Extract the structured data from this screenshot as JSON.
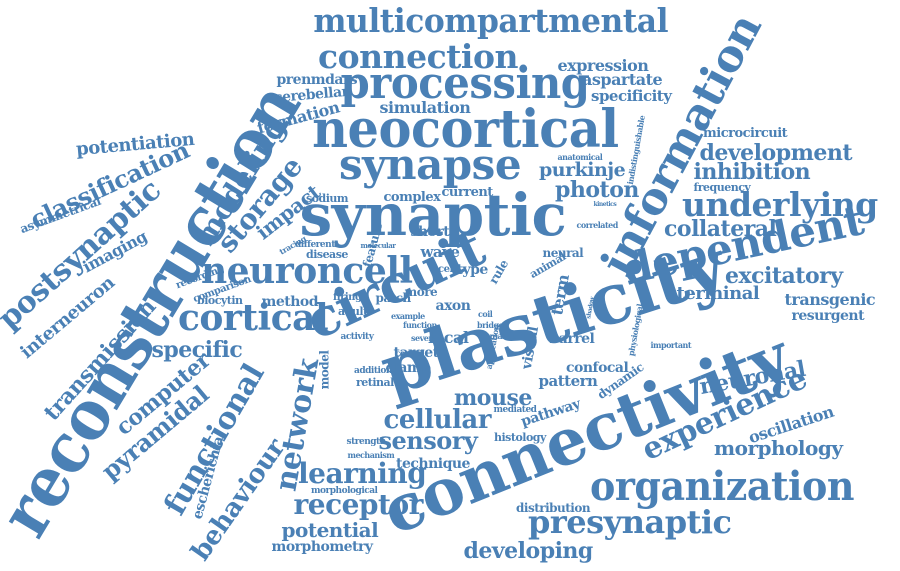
{
  "color": "#4a80b5",
  "words": [
    "multicompartmental",
    "connection",
    "processing",
    "neocortical",
    "synapse",
    "synaptic",
    "reconstruction",
    "information",
    "dependent",
    "underlying",
    "development",
    "inhibition",
    "microcircuit",
    "photon",
    "purkinje",
    "complex",
    "current",
    "sodium",
    "impact",
    "storage",
    "modeling",
    "classification",
    "potentiation",
    "postsynaptic",
    "asymmetrical",
    "imaging",
    "neuroncell",
    "cortical",
    "interneuron",
    "transmission",
    "specific",
    "computer",
    "pyramidal",
    "functional",
    "behaviour",
    "network",
    "circuit",
    "plasticity",
    "connectivity",
    "experience",
    "organization",
    "presynaptic",
    "developing",
    "potential",
    "morphometry",
    "receptor",
    "learning",
    "sensory",
    "cellular",
    "mouse",
    "technique",
    "oscillation",
    "morphology",
    "neuronal",
    "excitatory",
    "collateral",
    "terminal",
    "transgenic",
    "resurgent",
    "expression",
    "aspartate",
    "specificity",
    "simulation",
    "prenmdars",
    "cerebellar",
    "formation",
    "escherichia",
    "frequency",
    "wave",
    "short",
    "feature",
    "disease",
    "method",
    "biocytin",
    "comparison",
    "recording",
    "different",
    "tracing",
    "firing",
    "patch",
    "adult",
    "activity",
    "axon",
    "local",
    "target",
    "clamp",
    "retinal",
    "addition",
    "model",
    "pattern",
    "confocal",
    "dynamic",
    "barrel",
    "visual",
    "term",
    "neural",
    "animal",
    "type",
    "rule",
    "more",
    "strength",
    "mechanism",
    "mediated",
    "pathway",
    "histology",
    "distribution",
    "morphological",
    "correlated",
    "indistinguishable",
    "anatomical",
    "molecular",
    "physiological",
    "important",
    "manual",
    "application",
    "several",
    "control",
    "example",
    "function",
    "coil",
    "bridge",
    "shadow",
    "kinetics",
    "cell"
  ]
}
